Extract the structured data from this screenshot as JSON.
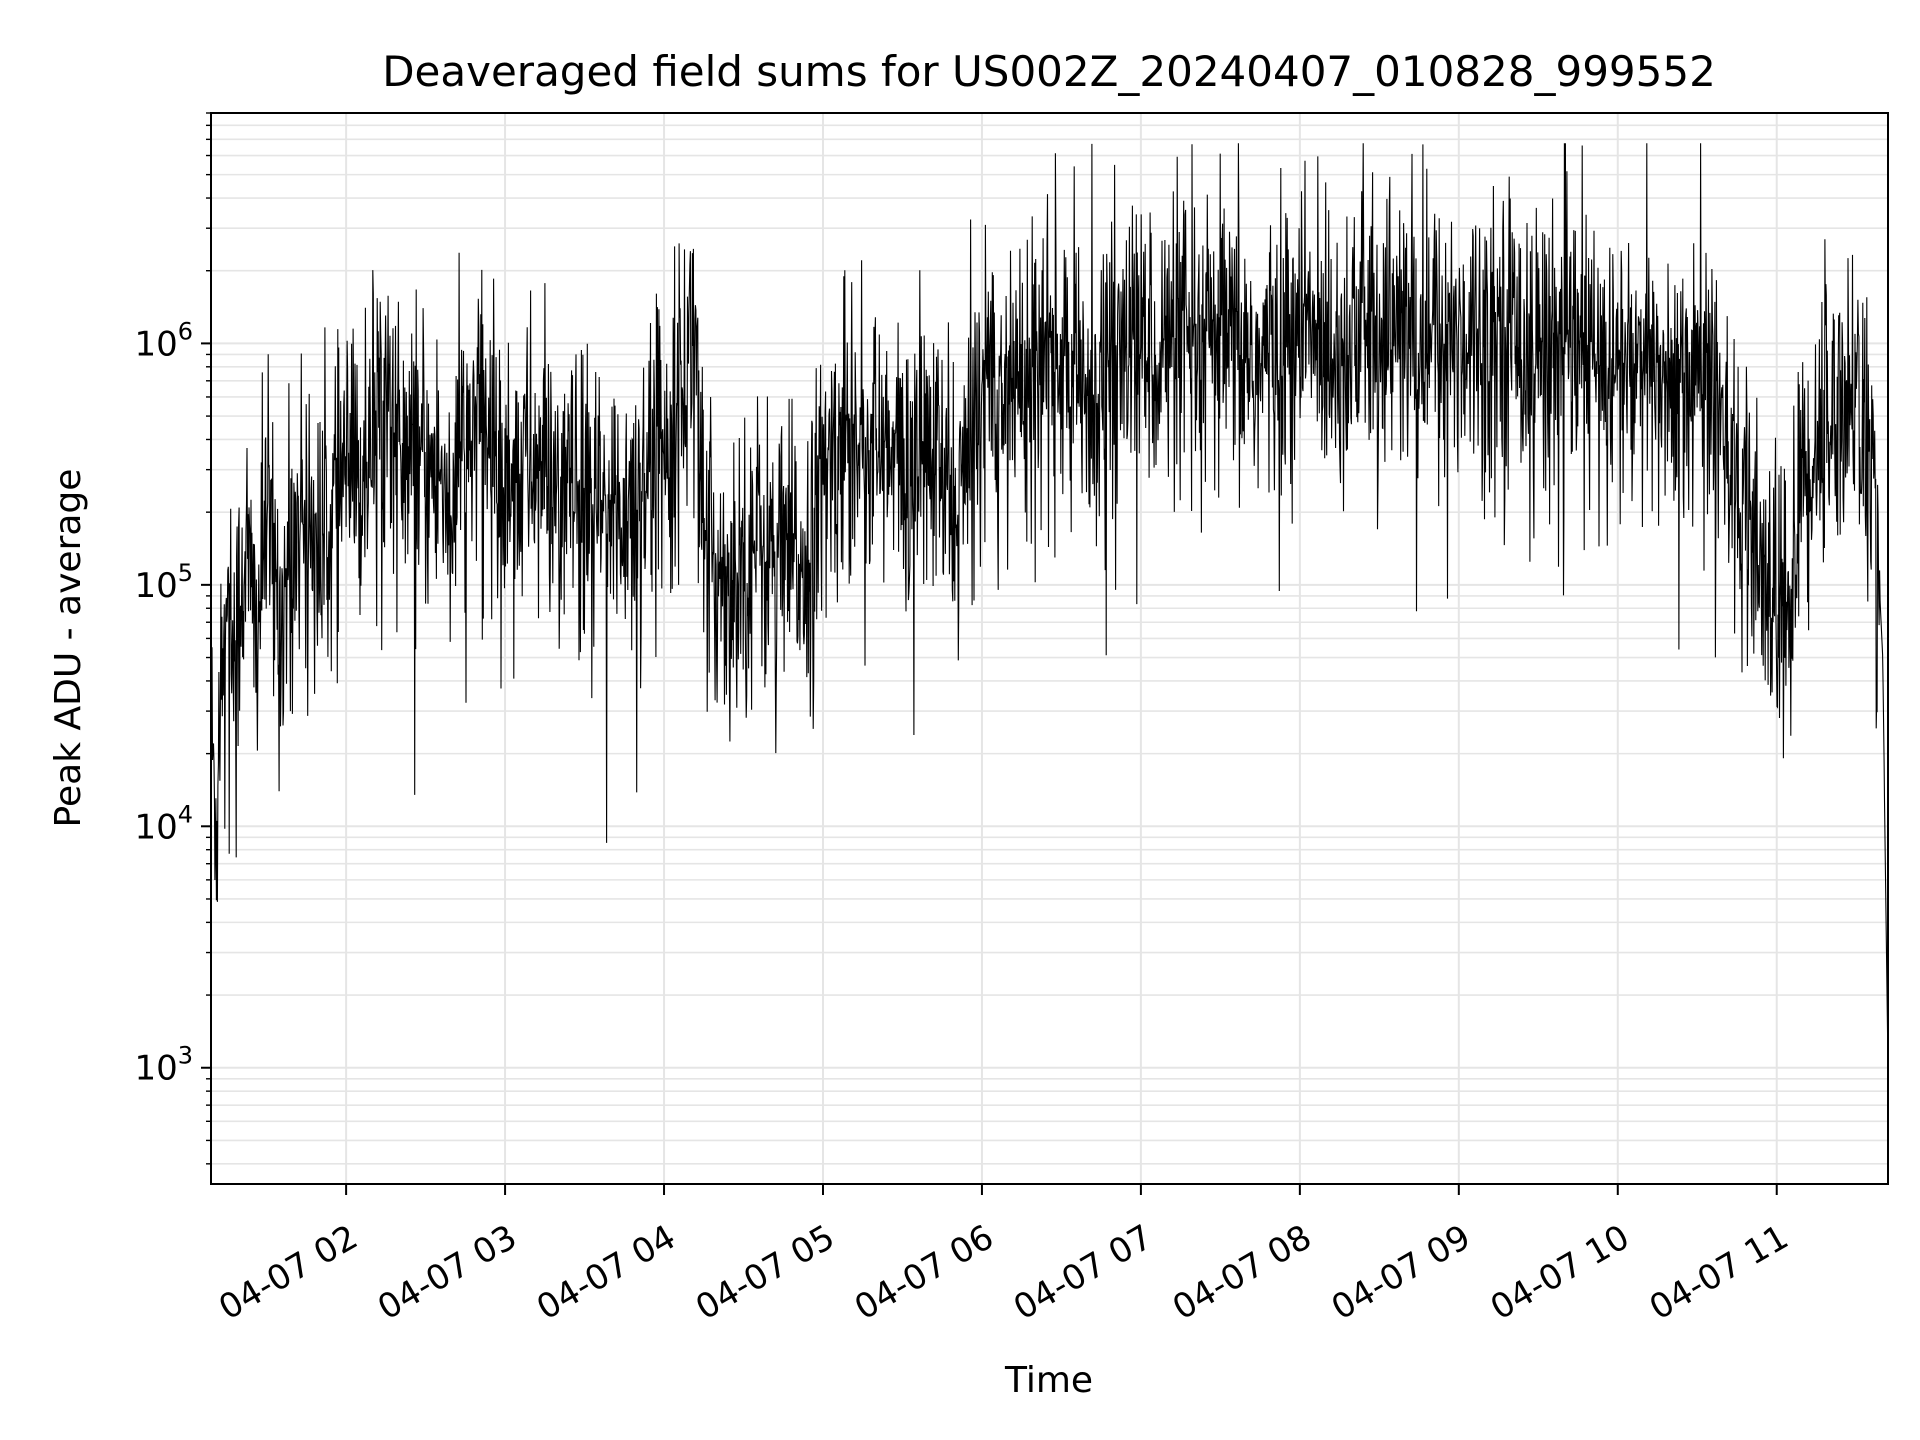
{
  "chart_data": {
    "type": "line",
    "title": "Deaveraged field sums for US002Z_20240407_010828_999552",
    "xlabel": "Time",
    "ylabel": "Peak ADU - average",
    "y_scale": "log",
    "ylim": [
      330,
      9000000
    ],
    "xlim": [
      "2024-04-07 01:09",
      "2024-04-07 11:42"
    ],
    "grid": "major and minor",
    "line_color": "#000000",
    "grid_color": "#e5e5e5",
    "y_ticks": [
      {
        "value": 1000,
        "base": "10",
        "exp": "3"
      },
      {
        "value": 10000,
        "base": "10",
        "exp": "4"
      },
      {
        "value": 100000,
        "base": "10",
        "exp": "5"
      },
      {
        "value": 1000000,
        "base": "10",
        "exp": "6"
      }
    ],
    "x_ticks": [
      {
        "value": "2024-04-07 02:00",
        "label": "04-07 02"
      },
      {
        "value": "2024-04-07 03:00",
        "label": "04-07 03"
      },
      {
        "value": "2024-04-07 04:00",
        "label": "04-07 04"
      },
      {
        "value": "2024-04-07 05:00",
        "label": "04-07 05"
      },
      {
        "value": "2024-04-07 06:00",
        "label": "04-07 06"
      },
      {
        "value": "2024-04-07 07:00",
        "label": "04-07 07"
      },
      {
        "value": "2024-04-07 08:00",
        "label": "04-07 08"
      },
      {
        "value": "2024-04-07 09:00",
        "label": "04-07 09"
      },
      {
        "value": "2024-04-07 10:00",
        "label": "04-07 10"
      },
      {
        "value": "2024-04-07 11:00",
        "label": "04-07 11"
      }
    ],
    "series": [
      {
        "points": [
          [
            "2024-04-07 01:09",
            25000
          ],
          [
            "2024-04-07 01:11",
            10000
          ],
          [
            "2024-04-07 01:13",
            60000
          ],
          [
            "2024-04-07 01:15",
            100000
          ],
          [
            "2024-04-07 01:18",
            50000
          ],
          [
            "2024-04-07 01:22",
            150000
          ],
          [
            "2024-04-07 01:26",
            60000
          ],
          [
            "2024-04-07 01:30",
            200000
          ],
          [
            "2024-04-07 01:35",
            70000
          ],
          [
            "2024-04-07 01:40",
            150000
          ],
          [
            "2024-04-07 01:45",
            250000
          ],
          [
            "2024-04-07 01:50",
            120000
          ],
          [
            "2024-04-07 01:55",
            200000
          ],
          [
            "2024-04-07 02:00",
            300000
          ],
          [
            "2024-04-07 02:05",
            250000
          ],
          [
            "2024-04-07 02:10",
            500000
          ],
          [
            "2024-04-07 02:15",
            700000
          ],
          [
            "2024-04-07 02:20",
            350000
          ],
          [
            "2024-04-07 02:30",
            300000
          ],
          [
            "2024-04-07 02:40",
            250000
          ],
          [
            "2024-04-07 02:50",
            500000
          ],
          [
            "2024-04-07 03:00",
            280000
          ],
          [
            "2024-04-07 03:10",
            320000
          ],
          [
            "2024-04-07 03:20",
            250000
          ],
          [
            "2024-04-07 03:30",
            220000
          ],
          [
            "2024-04-07 03:40",
            180000
          ],
          [
            "2024-04-07 03:50",
            250000
          ],
          [
            "2024-04-07 04:00",
            450000
          ],
          [
            "2024-04-07 04:08",
            700000
          ],
          [
            "2024-04-07 04:12",
            1500000
          ],
          [
            "2024-04-07 04:15",
            120000
          ],
          [
            "2024-04-07 04:25",
            110000
          ],
          [
            "2024-04-07 04:35",
            150000
          ],
          [
            "2024-04-07 04:45",
            120000
          ],
          [
            "2024-04-07 04:55",
            130000
          ],
          [
            "2024-04-07 05:00",
            250000
          ],
          [
            "2024-04-07 05:10",
            500000
          ],
          [
            "2024-04-07 05:20",
            350000
          ],
          [
            "2024-04-07 05:30",
            300000
          ],
          [
            "2024-04-07 05:40",
            350000
          ],
          [
            "2024-04-07 05:50",
            200000
          ],
          [
            "2024-04-07 05:55",
            300000
          ],
          [
            "2024-04-07 06:00",
            800000
          ],
          [
            "2024-04-07 06:10",
            700000
          ],
          [
            "2024-04-07 06:20",
            900000
          ],
          [
            "2024-04-07 06:30",
            800000
          ],
          [
            "2024-04-07 06:40",
            600000
          ],
          [
            "2024-04-07 06:50",
            900000
          ],
          [
            "2024-04-07 07:00",
            1000000
          ],
          [
            "2024-04-07 07:15",
            900000
          ],
          [
            "2024-04-07 07:30",
            1000000
          ],
          [
            "2024-04-07 07:45",
            800000
          ],
          [
            "2024-04-07 08:00",
            1100000
          ],
          [
            "2024-04-07 08:15",
            1000000
          ],
          [
            "2024-04-07 08:30",
            1200000
          ],
          [
            "2024-04-07 08:45",
            1000000
          ],
          [
            "2024-04-07 09:00",
            1100000
          ],
          [
            "2024-04-07 09:15",
            1200000
          ],
          [
            "2024-04-07 09:30",
            1000000
          ],
          [
            "2024-04-07 09:45",
            900000
          ],
          [
            "2024-04-07 10:00",
            800000
          ],
          [
            "2024-04-07 10:15",
            700000
          ],
          [
            "2024-04-07 10:30",
            800000
          ],
          [
            "2024-04-07 10:40",
            600000
          ],
          [
            "2024-04-07 10:46",
            180000
          ],
          [
            "2024-04-07 10:55",
            100000
          ],
          [
            "2024-04-07 11:05",
            80000
          ],
          [
            "2024-04-07 11:10",
            300000
          ],
          [
            "2024-04-07 11:20",
            500000
          ],
          [
            "2024-04-07 11:30",
            700000
          ],
          [
            "2024-04-07 11:35",
            300000
          ],
          [
            "2024-04-07 11:38",
            150000
          ],
          [
            "2024-04-07 11:40",
            50000
          ],
          [
            "2024-04-07 11:42",
            1000
          ]
        ],
        "noise_sigma_log10": 0.3
      }
    ]
  }
}
